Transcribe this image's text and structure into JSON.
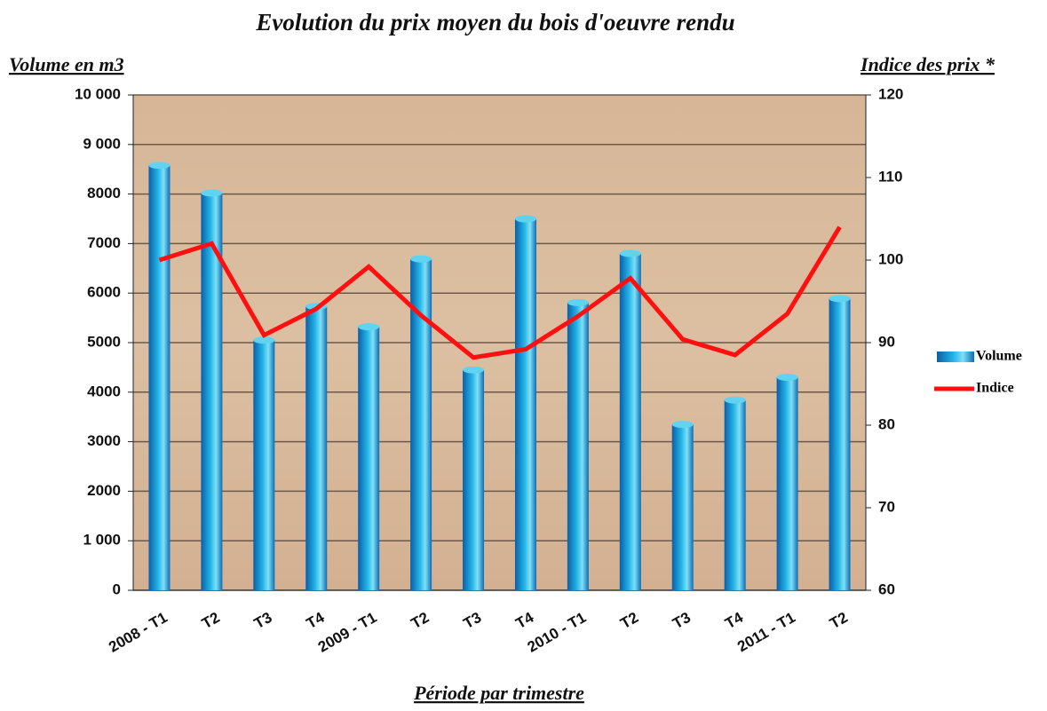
{
  "chart_data": {
    "type": "bar_line",
    "title": "Evolution du prix moyen du bois d'oeuvre rendu",
    "y_label": "Volume en m3",
    "y2_label": "Indice des prix *",
    "x_label": "Période par trimestre",
    "categories": [
      "2008 - T1",
      "T2",
      "T3",
      "T4",
      "2009 - T1",
      "T2",
      "T3",
      "T4",
      "2010 - T1",
      "T2",
      "T3",
      "T4",
      "2011 - T1",
      "T2"
    ],
    "series": [
      {
        "name": "Volume",
        "type": "bar",
        "color": "#1a8fd6",
        "values": [
          8580,
          8020,
          5050,
          5730,
          5320,
          6690,
          4450,
          7500,
          5810,
          6800,
          3350,
          3840,
          4300,
          5890
        ]
      },
      {
        "name": "Indice",
        "type": "line",
        "axis": "y2",
        "color": "#ff1010",
        "values": [
          100,
          102,
          90.9,
          94.1,
          99.2,
          93.3,
          88.2,
          89.2,
          93.2,
          97.8,
          90.4,
          88.5,
          93.5,
          104
        ]
      }
    ],
    "ylim": [
      0,
      10000
    ],
    "yticks": [
      0,
      {
        "value": 1000,
        "label": "1 000"
      },
      2000,
      3000,
      4000,
      5000,
      6000,
      7000,
      8000,
      {
        "value": 9000,
        "label": "9 000"
      },
      {
        "value": 10000,
        "label": "10 000"
      }
    ],
    "y2lim": [
      60,
      120
    ],
    "y2ticks": [
      60,
      70,
      80,
      90,
      100,
      110,
      120
    ],
    "grid": true
  }
}
